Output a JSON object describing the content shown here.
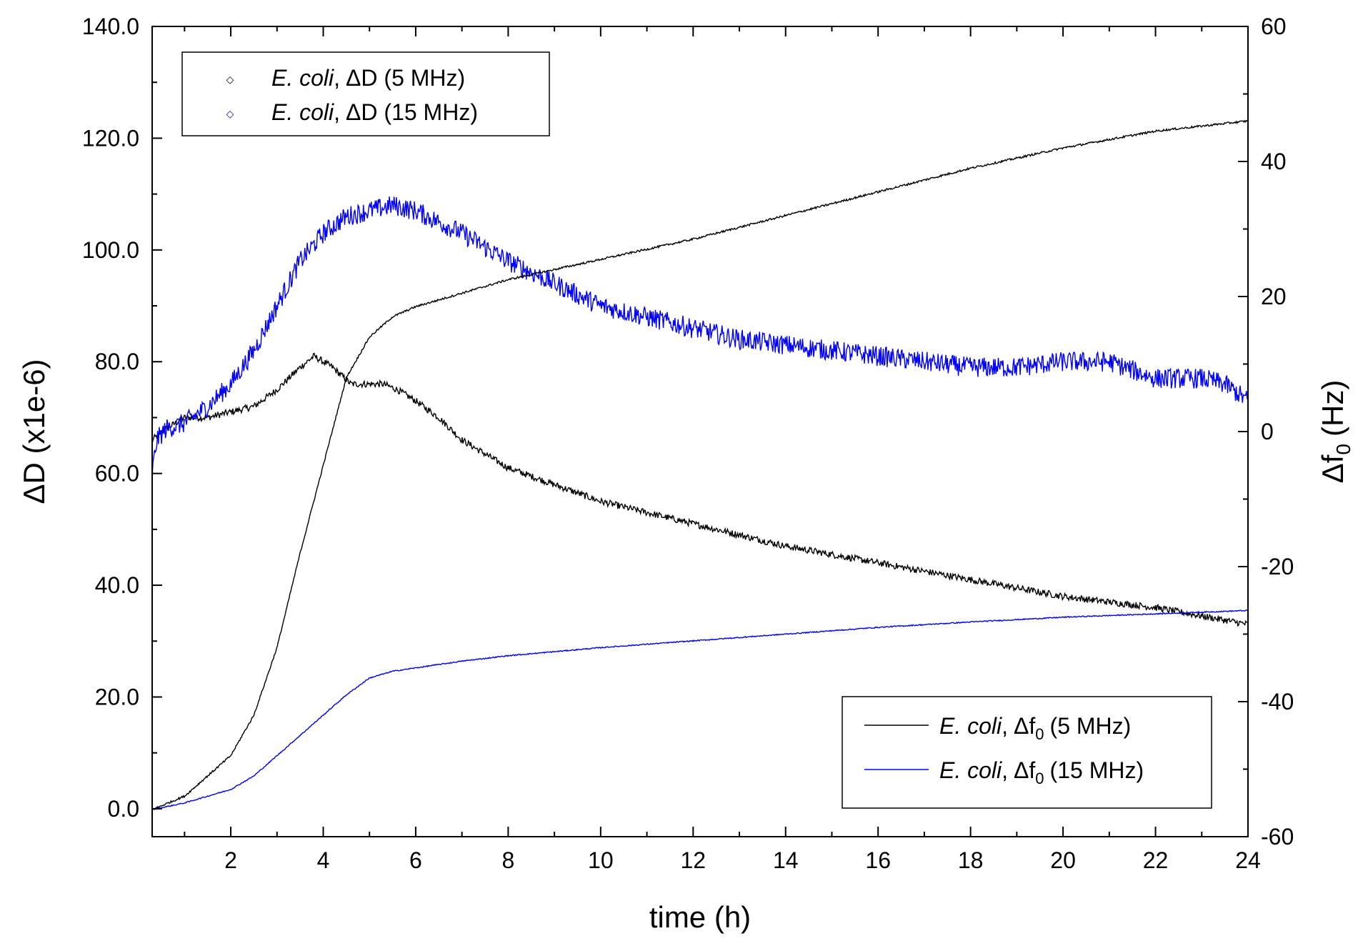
{
  "chart_data": {
    "type": "line",
    "xlabel": "time (h)",
    "ylabel_left": "ΔD (x1e-6)",
    "ylabel_right": "Δf",
    "ylabel_right_sub": "0",
    "ylabel_right_unit": "(Hz)",
    "xlim": [
      0.3,
      24
    ],
    "ylim_left": [
      -5,
      140
    ],
    "ylim_right": [
      -60,
      60
    ],
    "x_ticks": [
      2,
      4,
      6,
      8,
      10,
      12,
      14,
      16,
      18,
      20,
      22,
      24
    ],
    "x_tick_labels": [
      "2",
      "4",
      "6",
      "8",
      "10",
      "12",
      "14",
      "16",
      "18",
      "20",
      "22",
      "24"
    ],
    "left_ticks": [
      0,
      20,
      40,
      60,
      80,
      100,
      120,
      140
    ],
    "left_tick_labels": [
      "0.0",
      "20.0",
      "40.0",
      "60.0",
      "80.0",
      "100.0",
      "120.0",
      "140.0"
    ],
    "right_ticks": [
      -60,
      -40,
      -20,
      0,
      20,
      40,
      60
    ],
    "right_tick_labels": [
      "-60",
      "-40",
      "-20",
      "0",
      "20",
      "40",
      "60"
    ],
    "legend_top": {
      "placement": "top-left",
      "entries": [
        {
          "species": "E. coli",
          "comma": ",",
          "label": "ΔD (5 MHz)",
          "color": "#000000",
          "marker": "◇"
        },
        {
          "species": "E. coli",
          "comma": ",",
          "label": "ΔD (15 MHz)",
          "color": "#0000ff",
          "marker": "◇"
        }
      ]
    },
    "legend_bottom": {
      "placement": "bottom-right",
      "entries": [
        {
          "species": "E. coli",
          "comma": ",",
          "label": "Δf",
          "sub": "0",
          "rest": "(5 MHz)",
          "color": "#000000"
        },
        {
          "species": "E. coli",
          "comma": ",",
          "label": "Δf",
          "sub": "0",
          "rest": "(15 MHz)",
          "color": "#0000ff"
        }
      ]
    },
    "series": [
      {
        "name": "E. coli, ΔD (5 MHz)",
        "axis": "left",
        "color": "#000000",
        "noise": 0.6,
        "x": [
          0.3,
          0.6,
          1,
          1.5,
          2,
          2.5,
          3,
          3.5,
          3.8,
          4.2,
          4.6,
          5,
          5.3,
          5.6,
          6,
          6.5,
          7,
          8,
          9,
          10,
          12,
          14,
          16,
          18,
          20,
          22,
          24
        ],
        "y": [
          66,
          68,
          70,
          70,
          71,
          72,
          75,
          79,
          81,
          79,
          76,
          76,
          76,
          75,
          73,
          70,
          66,
          61,
          58,
          55,
          51,
          47,
          44,
          41,
          38,
          36,
          33
        ]
      },
      {
        "name": "E. coli, ΔD (15 MHz)",
        "axis": "left",
        "color": "#0000ff",
        "noise": 1.8,
        "x": [
          0.3,
          0.4,
          0.6,
          1,
          1.5,
          2,
          2.5,
          3,
          3.5,
          4,
          4.5,
          5,
          5.5,
          6,
          7,
          8,
          9,
          10,
          11,
          12,
          13,
          14,
          15,
          16,
          17,
          18,
          19,
          20,
          21,
          22,
          23,
          23.5,
          24
        ],
        "y": [
          60,
          66,
          68,
          69,
          72,
          76,
          82,
          90,
          98,
          103,
          106,
          107,
          108,
          107,
          103,
          98,
          94,
          90,
          88,
          86,
          84,
          83,
          82,
          81,
          80,
          79,
          79,
          80,
          80,
          77,
          77,
          76,
          73
        ]
      },
      {
        "name": "E. coli, Δf0 (5 MHz)",
        "axis": "right",
        "color": "#000000",
        "noise": 0.15,
        "x": [
          0.3,
          1,
          2,
          2.5,
          3,
          3.5,
          4,
          4.5,
          5,
          5.5,
          6,
          7,
          8,
          10,
          12,
          14,
          16,
          18,
          20,
          22,
          24
        ],
        "y": [
          -56,
          -54,
          -48,
          -42,
          -32,
          -18,
          -5,
          8,
          14,
          17,
          18.5,
          20.5,
          22.5,
          25.5,
          28.5,
          32,
          35.5,
          39,
          42,
          44.5,
          46
        ]
      },
      {
        "name": "E. coli, Δf0 (15 MHz)",
        "axis": "right",
        "color": "#0000ff",
        "noise": 0.08,
        "x": [
          0.3,
          1,
          2,
          2.5,
          3,
          3.5,
          4,
          4.5,
          5,
          5.5,
          6,
          7,
          8,
          10,
          12,
          14,
          16,
          18,
          20,
          22,
          24
        ],
        "y": [
          -56,
          -55,
          -53,
          -51,
          -48,
          -45,
          -42,
          -39,
          -36.5,
          -35.5,
          -35,
          -34,
          -33.2,
          -32,
          -31,
          -30,
          -29,
          -28.2,
          -27.5,
          -27,
          -26.5
        ]
      }
    ]
  }
}
